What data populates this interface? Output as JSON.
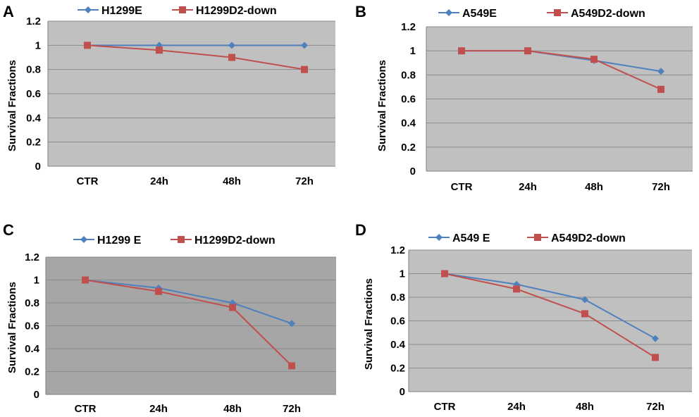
{
  "chart_data": [
    {
      "panel": "A",
      "type": "line",
      "categories": [
        "CTR",
        "24h",
        "48h",
        "72h"
      ],
      "ylabel": "Survival Fractions",
      "xlabel": "",
      "ylim": [
        0,
        1.2
      ],
      "yticks": [
        "0",
        "0.2",
        "0.4",
        "0.6",
        "0.8",
        "1",
        "1.2"
      ],
      "plot_bg": "#c0c0c0",
      "series": [
        {
          "name": "H1299E",
          "color": "#4f81bd",
          "marker": "diamond",
          "values": [
            1.0,
            1.0,
            1.0,
            1.0
          ]
        },
        {
          "name": "H1299D2-down",
          "color": "#c0504d",
          "marker": "square",
          "values": [
            1.0,
            0.96,
            0.9,
            0.8
          ]
        }
      ]
    },
    {
      "panel": "B",
      "type": "line",
      "categories": [
        "CTR",
        "24h",
        "48h",
        "72h"
      ],
      "ylabel": "Survival Fractions",
      "xlabel": "",
      "ylim": [
        0,
        1.2
      ],
      "yticks": [
        "0",
        "0.2",
        "0.4",
        "0.6",
        "0.8",
        "1",
        "1.2"
      ],
      "plot_bg": "#c0c0c0",
      "series": [
        {
          "name": "A549E",
          "color": "#4f81bd",
          "marker": "diamond",
          "values": [
            1.0,
            1.0,
            0.92,
            0.83
          ]
        },
        {
          "name": "A549D2-down",
          "color": "#c0504d",
          "marker": "square",
          "values": [
            1.0,
            1.0,
            0.93,
            0.68
          ]
        }
      ]
    },
    {
      "panel": "C",
      "type": "line",
      "categories": [
        "CTR",
        "24h",
        "48h",
        "72h"
      ],
      "ylabel": "Survival Fractions",
      "xlabel": "",
      "ylim": [
        0,
        1.2
      ],
      "yticks": [
        "0",
        "0.2",
        "0.4",
        "0.6",
        "0.8",
        "1",
        "1.2"
      ],
      "plot_bg": "#a6a6a6",
      "series": [
        {
          "name": "H1299 E",
          "color": "#4f81bd",
          "marker": "diamond",
          "values": [
            1.0,
            0.93,
            0.8,
            0.62
          ]
        },
        {
          "name": "H1299D2-down",
          "color": "#c0504d",
          "marker": "square",
          "values": [
            1.0,
            0.9,
            0.76,
            0.25
          ]
        }
      ]
    },
    {
      "panel": "D",
      "type": "line",
      "categories": [
        "CTR",
        "24h",
        "48h",
        "72h"
      ],
      "ylabel": "Survival Fractions",
      "xlabel": "",
      "ylim": [
        0,
        1.2
      ],
      "yticks": [
        "0",
        "0.2",
        "0.4",
        "0.6",
        "0.8",
        "1",
        "1.2"
      ],
      "plot_bg": "#c0c0c0",
      "series": [
        {
          "name": "A549 E",
          "color": "#4f81bd",
          "marker": "diamond",
          "values": [
            1.0,
            0.91,
            0.78,
            0.45
          ]
        },
        {
          "name": "A549D2-down",
          "color": "#c0504d",
          "marker": "square",
          "values": [
            1.0,
            0.87,
            0.66,
            0.29
          ]
        }
      ]
    }
  ]
}
